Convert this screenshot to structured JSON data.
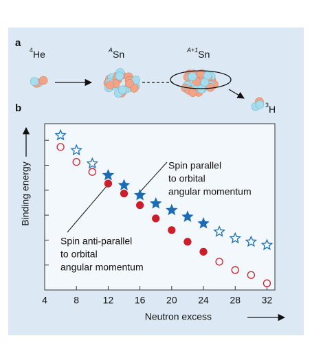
{
  "panel_a": {
    "label": "a",
    "nuclei": [
      {
        "sup": "4",
        "text": "He"
      },
      {
        "sup": "A",
        "text": "Sn"
      },
      {
        "sup": "A+1",
        "text": "Sn"
      },
      {
        "sup": "3",
        "text": "H"
      }
    ]
  },
  "chart_data": {
    "type": "scatter",
    "panel_label": "b",
    "xlabel": "Neutron excess",
    "ylabel": "Binding energy",
    "xlim": [
      4,
      33
    ],
    "xticks": [
      4,
      8,
      12,
      16,
      20,
      24,
      28,
      32
    ],
    "ylim": [
      0,
      10
    ],
    "yticks": [
      1.5,
      3,
      4.5,
      6,
      7.5,
      9
    ],
    "series": [
      {
        "marker": "star",
        "filled": false,
        "color": "#1a6db5",
        "x": [
          6,
          8,
          10
        ],
        "values": [
          9.3,
          8.4,
          7.6
        ]
      },
      {
        "marker": "star",
        "filled": true,
        "color": "#1a6db5",
        "x": [
          12,
          14,
          16,
          18,
          20,
          22,
          24
        ],
        "values": [
          6.9,
          6.3,
          5.7,
          5.2,
          4.8,
          4.4,
          4.0
        ]
      },
      {
        "marker": "star",
        "filled": false,
        "color": "#1a6db5",
        "x": [
          26,
          28,
          30,
          32
        ],
        "values": [
          3.5,
          3.1,
          2.9,
          2.7
        ]
      },
      {
        "marker": "circle",
        "filled": false,
        "color": "#cc1f2a",
        "x": [
          6,
          8,
          10
        ],
        "values": [
          8.6,
          7.7,
          7.1
        ]
      },
      {
        "marker": "circle",
        "filled": true,
        "color": "#cc1f2a",
        "x": [
          12,
          14,
          16,
          18,
          20,
          22,
          24
        ],
        "values": [
          6.4,
          5.8,
          5.1,
          4.3,
          3.6,
          2.9,
          2.3
        ]
      },
      {
        "marker": "circle",
        "filled": false,
        "color": "#cc1f2a",
        "x": [
          26,
          28,
          30,
          32
        ],
        "values": [
          1.7,
          1.2,
          0.9,
          0.4
        ]
      }
    ],
    "annotations": [
      {
        "lines": [
          "Spin parallel",
          "to orbital",
          "angular momentum"
        ]
      },
      {
        "lines": [
          "Spin anti-parallel",
          "to orbital",
          "angular momentum"
        ]
      }
    ]
  }
}
